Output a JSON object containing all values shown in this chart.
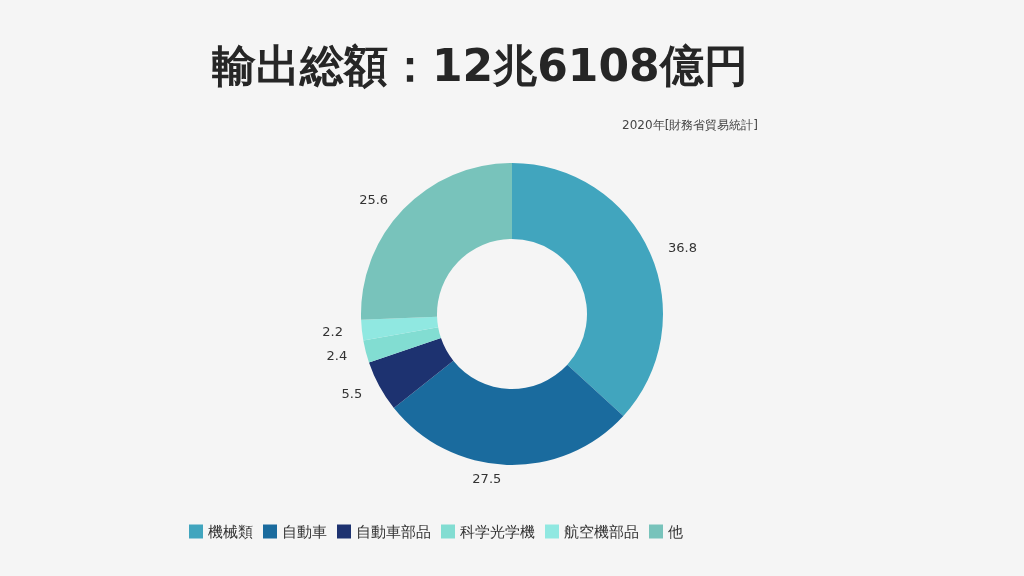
{
  "chart_data": {
    "type": "donut",
    "title": "輸出総額：12兆6108億円",
    "annotations": [
      "2020年[財務省貿易統計]"
    ],
    "categories": [
      "機械類",
      "自動車",
      "自動車部品",
      "科学光学機",
      "航空機部品",
      "他"
    ],
    "values": [
      36.8,
      27.5,
      5.5,
      2.4,
      2.2,
      25.6
    ],
    "colors": [
      "#41a5be",
      "#1a6b9e",
      "#1d3270",
      "#82ddd2",
      "#90e8e1",
      "#78c3bb"
    ],
    "data_labels": true,
    "legend": "bottom"
  }
}
